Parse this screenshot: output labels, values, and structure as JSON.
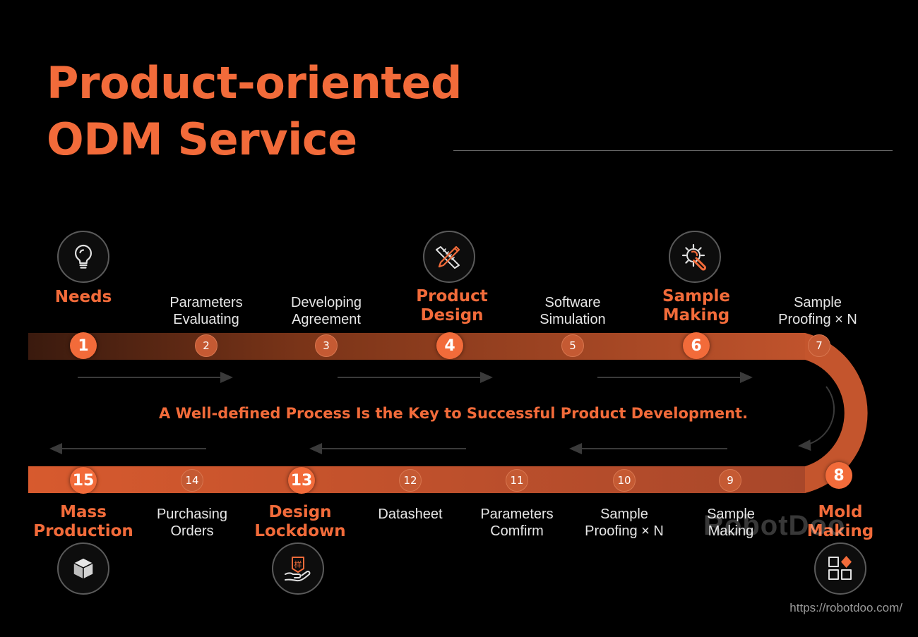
{
  "title": {
    "line1": "Product-oriented",
    "line2": "ODM Service"
  },
  "slogan": "A Well-defined Process Is the Key to Successful Product Development.",
  "colors": {
    "accent": "#f26b3a",
    "track": "#c0532c",
    "background": "#000000"
  },
  "steps": [
    {
      "number": "1",
      "label": [
        "Needs"
      ],
      "major": true,
      "icon": "lightbulb-icon"
    },
    {
      "number": "2",
      "label": [
        "Parameters",
        "Evaluating"
      ],
      "major": false
    },
    {
      "number": "3",
      "label": [
        "Developing",
        "Agreement"
      ],
      "major": false
    },
    {
      "number": "4",
      "label": [
        "Product",
        "Design"
      ],
      "major": true,
      "icon": "ruler-pencil-icon"
    },
    {
      "number": "5",
      "label": [
        "Software",
        "Simulation"
      ],
      "major": false
    },
    {
      "number": "6",
      "label": [
        "Sample",
        "Making"
      ],
      "major": true,
      "icon": "gear-wrench-icon"
    },
    {
      "number": "7",
      "label": [
        "Sample",
        "Proofing × N"
      ],
      "major": false
    },
    {
      "number": "8",
      "label": [
        "Mold",
        "Making"
      ],
      "major": true,
      "icon": "blocks-icon"
    },
    {
      "number": "9",
      "label": [
        "Sample",
        "Making"
      ],
      "major": false
    },
    {
      "number": "10",
      "label": [
        "Sample",
        "Proofing × N"
      ],
      "major": false
    },
    {
      "number": "11",
      "label": [
        "Parameters",
        "Comfirm"
      ],
      "major": false
    },
    {
      "number": "12",
      "label": [
        "Datasheet"
      ],
      "major": false
    },
    {
      "number": "13",
      "label": [
        "Design",
        "Lockdown"
      ],
      "major": true,
      "icon": "hand-seal-icon"
    },
    {
      "number": "14",
      "label": [
        "Purchasing",
        "Orders"
      ],
      "major": false
    },
    {
      "number": "15",
      "label": [
        "Mass",
        "Production"
      ],
      "major": true,
      "icon": "box-icon"
    }
  ],
  "seal_char": "样",
  "watermark": "RobotDoo",
  "url": "https://robotdoo.com/"
}
